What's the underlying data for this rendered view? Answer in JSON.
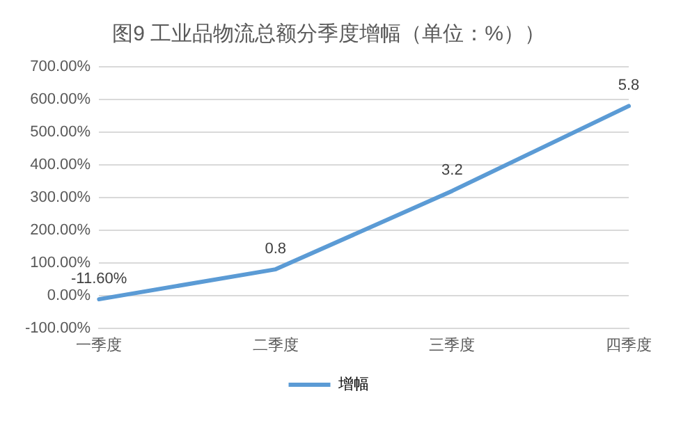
{
  "chart_data": {
    "type": "line",
    "title": "图9 工业品物流总额分季度增幅（单位：%））",
    "categories": [
      "一季度",
      "二季度",
      "三季度",
      "四季度"
    ],
    "series": [
      {
        "name": "增幅",
        "color": "#5b9bd5",
        "values": [
          -0.116,
          0.8,
          3.2,
          5.8
        ],
        "value_labels": [
          "-11.60%",
          "0.8",
          "3.2",
          "5.8"
        ]
      }
    ],
    "ylim": [
      -1,
      7
    ],
    "yticks": [
      {
        "value": -1,
        "label": "-100.00%"
      },
      {
        "value": 0,
        "label": "0.00%"
      },
      {
        "value": 1,
        "label": "100.00%"
      },
      {
        "value": 2,
        "label": "200.00%"
      },
      {
        "value": 3,
        "label": "300.00%"
      },
      {
        "value": 4,
        "label": "400.00%"
      },
      {
        "value": 5,
        "label": "500.00%"
      },
      {
        "value": 6,
        "label": "600.00%"
      },
      {
        "value": 7,
        "label": "700.00%"
      }
    ],
    "grid": "y",
    "legend": "bottom",
    "marker": "none",
    "line_style": "solid"
  }
}
